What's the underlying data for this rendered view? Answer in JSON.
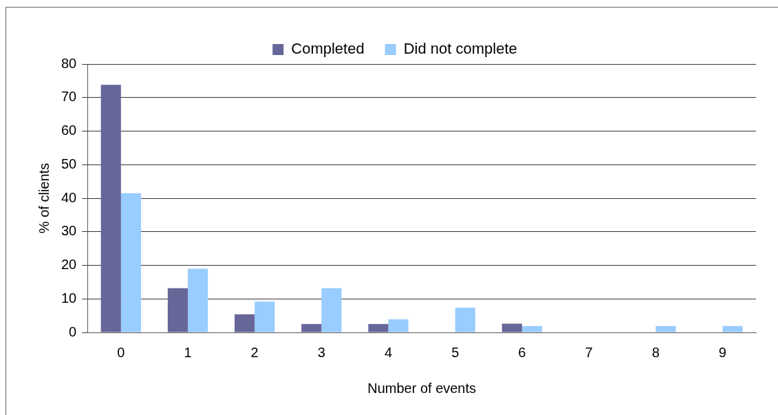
{
  "chart_data": {
    "type": "bar",
    "xlabel": "Number of events",
    "ylabel": "% of clients",
    "categories": [
      "0",
      "1",
      "2",
      "3",
      "4",
      "5",
      "6",
      "7",
      "8",
      "9"
    ],
    "series": [
      {
        "name": "Completed",
        "color": "#666699",
        "values": [
          73.8,
          13.2,
          5.4,
          2.5,
          2.5,
          0,
          2.6,
          0,
          0,
          0
        ]
      },
      {
        "name": "Did not complete",
        "color": "#99ccff",
        "values": [
          41.5,
          19.0,
          9.2,
          13.2,
          3.9,
          7.4,
          1.9,
          0,
          1.9,
          1.9
        ]
      }
    ],
    "ylim": [
      0,
      80
    ],
    "yticks": [
      0,
      10,
      20,
      30,
      40,
      50,
      60,
      70,
      80
    ],
    "grid": "y",
    "legend": "top"
  }
}
